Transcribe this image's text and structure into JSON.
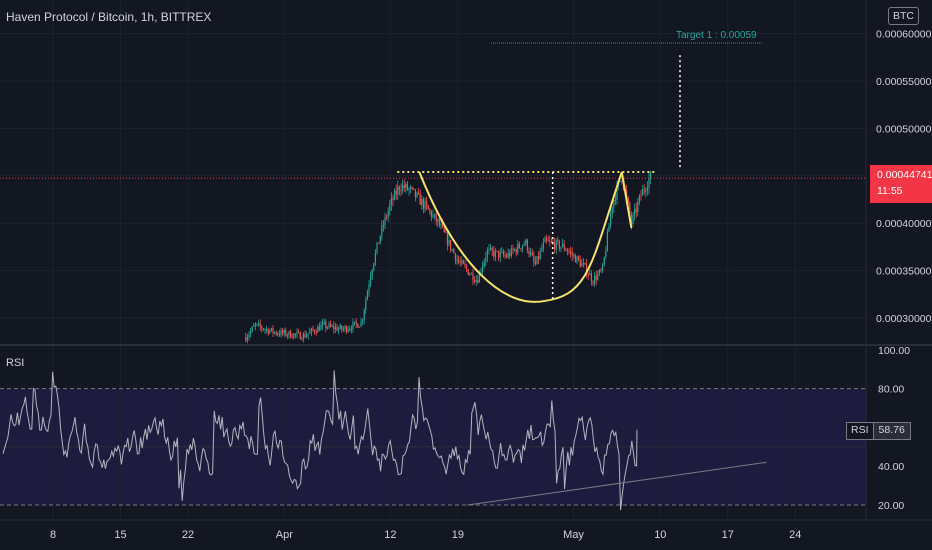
{
  "header": {
    "title": "Haven Protocol / Bitcoin, 1h, BITTREX"
  },
  "currency_button": {
    "label": "BTC"
  },
  "price_badge": {
    "price": "0.00044741",
    "countdown": "11:55"
  },
  "target_label": "Target 1 : 0.00059",
  "rsi_panel": {
    "title": "RSI",
    "badge_label": "RSI",
    "badge_value": "58.76"
  },
  "colors": {
    "background": "#131722",
    "grid": "#1e2230",
    "up": "#26a69a",
    "down": "#ef5350",
    "pattern": "#f5e26b",
    "rsi_line": "#b2b5be",
    "rsi_band": "#1f1b3f",
    "price_line": "#f23645",
    "target": "#26a69a"
  },
  "chart_data": [
    {
      "type": "candlestick",
      "title": "Haven Protocol / Bitcoin, 1h, BITTREX",
      "y_axis_ticks": [
        "0.00030000",
        "0.00035000",
        "0.00040000",
        "0.00045000",
        "0.00050000",
        "0.00055000",
        "0.00060000"
      ],
      "ylim": [
        0.00026,
        0.00062
      ],
      "x_axis_ticks": [
        "8",
        "15",
        "22",
        "Apr",
        "12",
        "19",
        "May",
        "10",
        "17",
        "24"
      ],
      "current_price": 0.00044741,
      "price_path": [
        {
          "x": "Mar 28",
          "y": 0.00028
        },
        {
          "x": "Mar 29",
          "y": 0.000292
        },
        {
          "x": "Mar 31",
          "y": 0.000285
        },
        {
          "x": "Apr 3",
          "y": 0.000281
        },
        {
          "x": "Apr 5",
          "y": 0.000292
        },
        {
          "x": "Apr 7",
          "y": 0.000288
        },
        {
          "x": "Apr 9",
          "y": 0.000295
        },
        {
          "x": "Apr 10",
          "y": 0.00035
        },
        {
          "x": "Apr 11",
          "y": 0.00039
        },
        {
          "x": "Apr 12",
          "y": 0.00042
        },
        {
          "x": "Apr 13",
          "y": 0.00044
        },
        {
          "x": "Apr 14",
          "y": 0.000435
        },
        {
          "x": "Apr 15",
          "y": 0.000425
        },
        {
          "x": "Apr 17",
          "y": 0.0004
        },
        {
          "x": "Apr 19",
          "y": 0.00036
        },
        {
          "x": "Apr 21",
          "y": 0.00034
        },
        {
          "x": "Apr 22",
          "y": 0.00037
        },
        {
          "x": "Apr 24",
          "y": 0.000365
        },
        {
          "x": "Apr 26",
          "y": 0.00038
        },
        {
          "x": "Apr 27",
          "y": 0.000355
        },
        {
          "x": "Apr 28",
          "y": 0.00038
        },
        {
          "x": "Apr 30",
          "y": 0.000375
        },
        {
          "x": "May 2",
          "y": 0.000355
        },
        {
          "x": "May 3",
          "y": 0.00034
        },
        {
          "x": "May 4",
          "y": 0.00035
        },
        {
          "x": "May 5",
          "y": 0.00042
        },
        {
          "x": "May 6",
          "y": 0.00045
        },
        {
          "x": "May 7",
          "y": 0.0004
        },
        {
          "x": "May 8",
          "y": 0.00043
        },
        {
          "x": "May 9",
          "y": 0.00045
        }
      ],
      "annotations": {
        "resistance_level": 0.000454,
        "cup_start": {
          "x": "Apr 15",
          "y": 0.000454
        },
        "cup_bottom": {
          "x": "Apr 28",
          "y": 0.000318
        },
        "cup_end": {
          "x": "May 6",
          "y": 0.000454
        },
        "handle_end": {
          "x": "May 7",
          "y": 0.000395
        },
        "target_level": 0.00059,
        "target_label": "Target 1 : 0.00059"
      }
    },
    {
      "type": "line",
      "title": "RSI",
      "y_axis_ticks": [
        "20.00",
        "40.00",
        "60.00",
        "80.00",
        "100.00"
      ],
      "ylim": [
        15,
        100
      ],
      "band": [
        20,
        80
      ],
      "current_value": 58.76,
      "trendline": [
        {
          "x": "Apr 20",
          "y": 20
        },
        {
          "x": "May 21",
          "y": 42
        }
      ]
    }
  ]
}
